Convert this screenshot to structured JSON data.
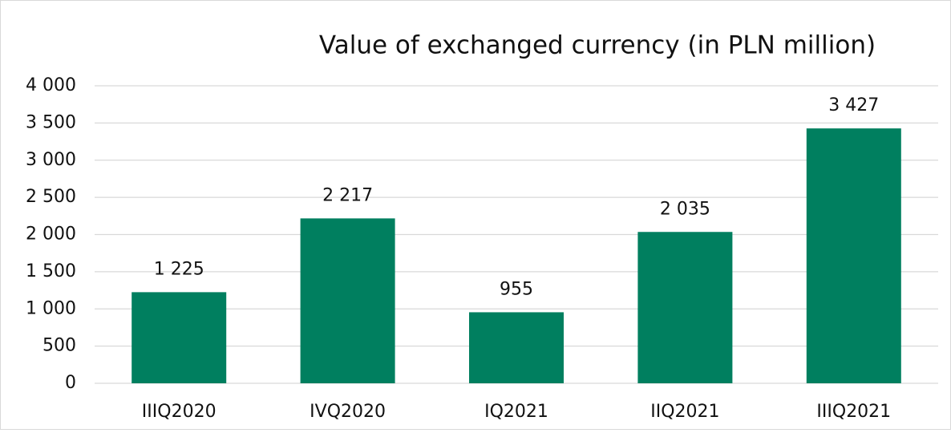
{
  "chart_data": {
    "type": "bar",
    "title": "Value of exchanged currency (in PLN million)",
    "categories": [
      "IIIQ2020",
      "IVQ2020",
      "IQ2021",
      "IIQ2021",
      "IIIQ2021"
    ],
    "values": [
      1225,
      2217,
      955,
      2035,
      3427
    ],
    "value_labels": [
      "1 225",
      "2 217",
      "955",
      "2 035",
      "3 427"
    ],
    "color": "#007f5f",
    "ylim": [
      0,
      4000
    ],
    "yticks": [
      0,
      500,
      {
        "value": 1000,
        "label": "1 000"
      },
      {
        "value": 1500,
        "label": "1 500"
      },
      {
        "value": 2000,
        "label": "2 000"
      },
      {
        "value": 2500,
        "label": "2 500"
      },
      {
        "value": 3000,
        "label": "3 000"
      },
      {
        "value": 3500,
        "label": "3 500"
      },
      {
        "value": 4000,
        "label": "4 000"
      }
    ],
    "grid": true
  }
}
